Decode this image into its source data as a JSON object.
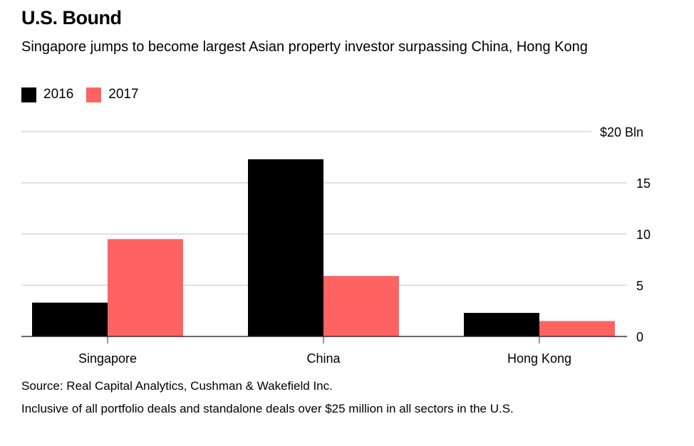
{
  "title": "U.S. Bound",
  "subtitle": "Singapore jumps to become largest Asian property investor surpassing China, Hong Kong",
  "source": "Source: Real Capital Analytics, Cushman & Wakefield Inc.",
  "note": "Inclusive of all portfolio deals and standalone deals over $25 million in all sectors in the U.S.",
  "chart_data": {
    "type": "bar",
    "categories": [
      "Singapore",
      "China",
      "Hong Kong"
    ],
    "series": [
      {
        "name": "2016",
        "color": "#000000",
        "values": [
          3.3,
          17.3,
          2.3
        ]
      },
      {
        "name": "2017",
        "color": "#ff6361",
        "values": [
          9.5,
          5.9,
          1.5
        ]
      }
    ],
    "ylim": [
      0,
      20
    ],
    "yticks": [
      0,
      5,
      10,
      15,
      20
    ],
    "ytick_labels": [
      "0",
      "5",
      "10",
      "15",
      "$20 Bln"
    ],
    "grid": true,
    "legend": "top-left",
    "yaxis_side": "right"
  }
}
